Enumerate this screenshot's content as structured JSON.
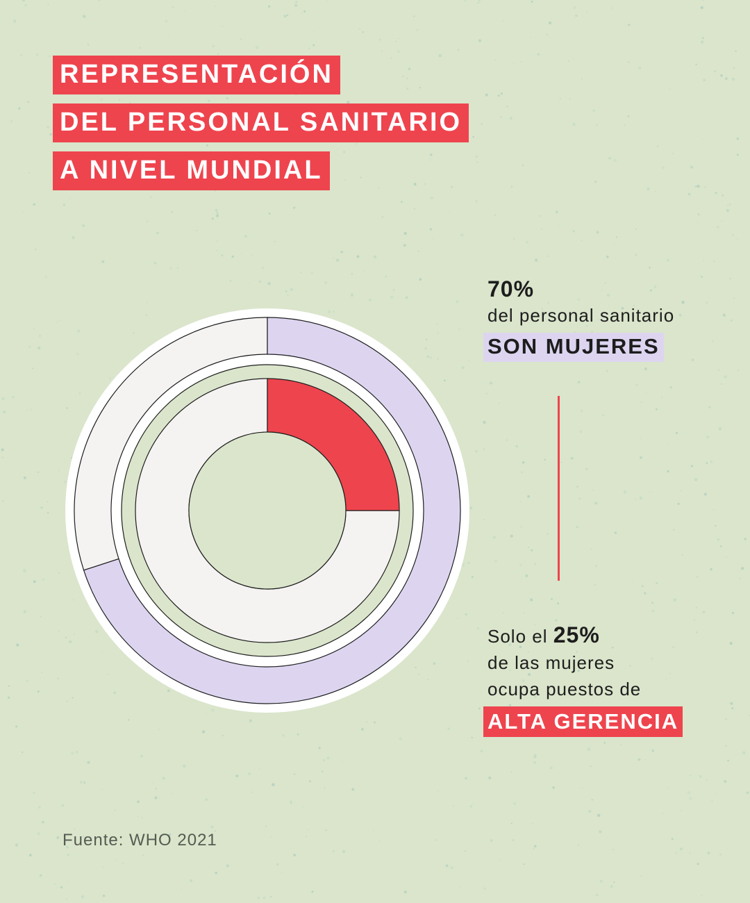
{
  "title": {
    "line1": "REPRESENTACIÓN",
    "line2": "DEL PERSONAL SANITARIO",
    "line3": "A NIVEL MUNDIAL"
  },
  "stat1": {
    "percent": "70%",
    "text": "del personal sanitario",
    "highlight": "SON MUJERES"
  },
  "stat2": {
    "prefix": "Solo el",
    "percent": "25%",
    "line2": "de las mujeres",
    "line3": "ocupa puestos de",
    "highlight": "ALTA GERENCIA"
  },
  "source": "Fuente: WHO 2021",
  "chart_data": {
    "type": "nested-donut",
    "series": [
      {
        "name": "Personal sanitario que son mujeres",
        "ring": "outer",
        "value": 70,
        "total": 100,
        "highlight_color": "#ddd5f0",
        "rest_color": "#f5f2f2"
      },
      {
        "name": "Mujeres en puestos de alta gerencia",
        "ring": "inner",
        "value": 25,
        "total": 100,
        "highlight_color": "#ee444e",
        "rest_color": "#f5f2f2"
      }
    ]
  },
  "colors": {
    "background": "#dae5cb",
    "accent_red": "#ee444e",
    "accent_purple": "#ddd5f0",
    "neutral": "#f5f2f2"
  }
}
